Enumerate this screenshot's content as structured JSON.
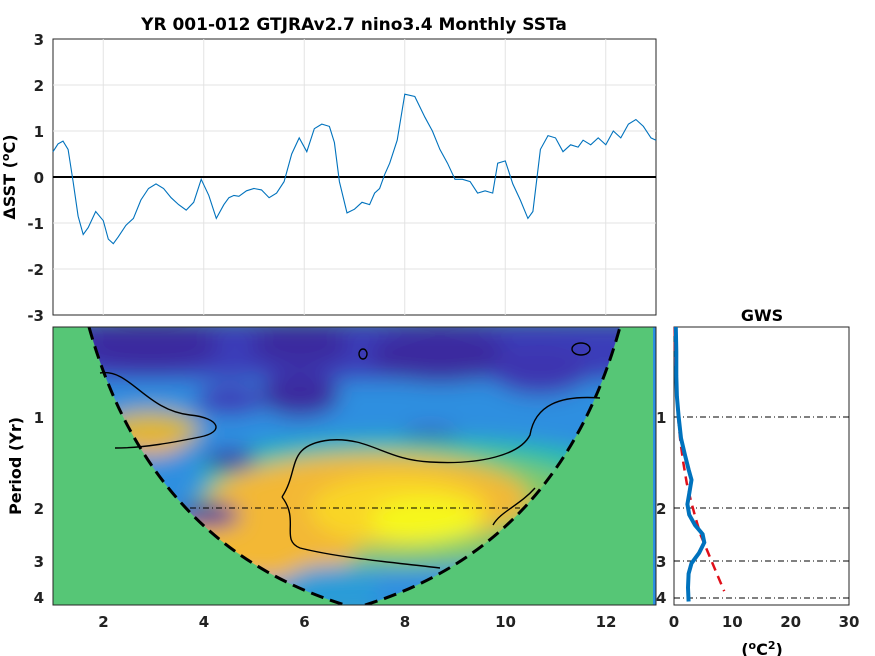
{
  "chart_data": [
    {
      "type": "line",
      "title": "YR 001-012 GTJRAv2.7 nino3.4 Monthly SSTa",
      "ylabel_prefix": "ΔSST (",
      "ylabel_sup": "o",
      "ylabel_suffix": "C)",
      "xlim": [
        1,
        13
      ],
      "ylim": [
        -3,
        3
      ],
      "yticks": [
        "-3",
        "-2",
        "-1",
        "0",
        "1",
        "2",
        "3"
      ],
      "xticks": [
        "2",
        "4",
        "6",
        "8",
        "10",
        "12"
      ],
      "grid": true,
      "zero_line": true,
      "line_color": "#0072BD",
      "x": [
        1.0,
        1.1,
        1.2,
        1.3,
        1.4,
        1.5,
        1.6,
        1.7,
        1.85,
        2.0,
        2.1,
        2.2,
        2.3,
        2.45,
        2.6,
        2.75,
        2.9,
        3.05,
        3.2,
        3.35,
        3.5,
        3.65,
        3.8,
        3.95,
        4.1,
        4.25,
        4.4,
        4.5,
        4.6,
        4.7,
        4.85,
        5.0,
        5.15,
        5.3,
        5.45,
        5.6,
        5.75,
        5.9,
        6.05,
        6.2,
        6.35,
        6.5,
        6.6,
        6.7,
        6.85,
        7.0,
        7.15,
        7.3,
        7.4,
        7.5,
        7.6,
        7.7,
        7.85,
        8.0,
        8.2,
        8.4,
        8.55,
        8.7,
        8.85,
        9.0,
        9.15,
        9.3,
        9.45,
        9.6,
        9.75,
        9.85,
        10.0,
        10.15,
        10.3,
        10.45,
        10.55,
        10.7,
        10.85,
        11.0,
        11.15,
        11.3,
        11.45,
        11.55,
        11.7,
        11.85,
        12.0,
        12.15,
        12.3,
        12.45,
        12.6,
        12.75,
        12.9,
        13.0
      ],
      "y": [
        0.55,
        0.72,
        0.78,
        0.6,
        -0.1,
        -0.85,
        -1.25,
        -1.1,
        -0.75,
        -0.95,
        -1.35,
        -1.45,
        -1.3,
        -1.05,
        -0.9,
        -0.5,
        -0.25,
        -0.15,
        -0.25,
        -0.45,
        -0.6,
        -0.72,
        -0.55,
        -0.05,
        -0.4,
        -0.9,
        -0.6,
        -0.45,
        -0.4,
        -0.42,
        -0.3,
        -0.25,
        -0.28,
        -0.45,
        -0.35,
        -0.1,
        0.5,
        0.85,
        0.55,
        1.05,
        1.15,
        1.1,
        0.75,
        -0.1,
        -0.78,
        -0.7,
        -0.55,
        -0.6,
        -0.35,
        -0.25,
        0.05,
        0.3,
        0.8,
        1.8,
        1.75,
        1.3,
        1.0,
        0.6,
        0.3,
        -0.05,
        -0.05,
        -0.1,
        -0.35,
        -0.3,
        -0.35,
        0.3,
        0.35,
        -0.15,
        -0.5,
        -0.9,
        -0.75,
        0.6,
        0.9,
        0.85,
        0.55,
        0.7,
        0.65,
        0.8,
        0.7,
        0.85,
        0.7,
        1.0,
        0.85,
        1.15,
        1.25,
        1.1,
        0.85,
        0.8
      ]
    },
    {
      "type": "heatmap",
      "ylabel": "Period (Yr)",
      "yticks": [
        "1",
        "2",
        "3",
        "4"
      ],
      "xticks": [
        "2",
        "4",
        "6",
        "8",
        "10",
        "12"
      ],
      "xlim": [
        1,
        13
      ],
      "background_color": "#56C676",
      "colormap": [
        "#3B1E9E",
        "#3E47C7",
        "#2A7BE0",
        "#16A7D9",
        "#2BC0A5",
        "#7EC96C",
        "#C5C23A",
        "#F3B835",
        "#F9D628",
        "#F6F81A"
      ]
    },
    {
      "type": "line",
      "title": "GWS",
      "xlabel_prefix": "(",
      "xlabel_sup_o": "o",
      "xlabel_mid": "C",
      "xlabel_sup_2": "2",
      "xlabel_suffix": ")",
      "xlim": [
        0,
        30
      ],
      "xticks": [
        "0",
        "10",
        "20",
        "30"
      ],
      "yticks": [
        "1",
        "2",
        "3",
        "4"
      ],
      "series": [
        {
          "color": "#0072BD",
          "style": "solid",
          "x": [
            0.3,
            0.4,
            0.4,
            0.5,
            0.8,
            1.2,
            1.9,
            2.5,
            3.0,
            2.6,
            2.3,
            2.6,
            3.6,
            4.9,
            5.2,
            4.3,
            3.0,
            2.5,
            2.4,
            2.5
          ],
          "y": [
            0.0,
            0.35,
            0.7,
            1.0,
            1.3,
            1.6,
            1.85,
            2.05,
            2.2,
            2.4,
            2.55,
            2.7,
            2.85,
            2.98,
            3.1,
            3.25,
            3.4,
            3.55,
            3.75,
            3.95
          ]
        },
        {
          "color": "#E0101A",
          "style": "dashed",
          "x": [
            0.1,
            0.2,
            0.4,
            0.7,
            1.1,
            1.6,
            2.2,
            2.9,
            3.7,
            4.6,
            5.6,
            6.6,
            7.6,
            8.6
          ],
          "y": [
            0.0,
            0.45,
            0.9,
            1.3,
            1.65,
            1.95,
            2.25,
            2.5,
            2.75,
            3.0,
            3.2,
            3.4,
            3.6,
            3.8
          ]
        }
      ]
    }
  ]
}
